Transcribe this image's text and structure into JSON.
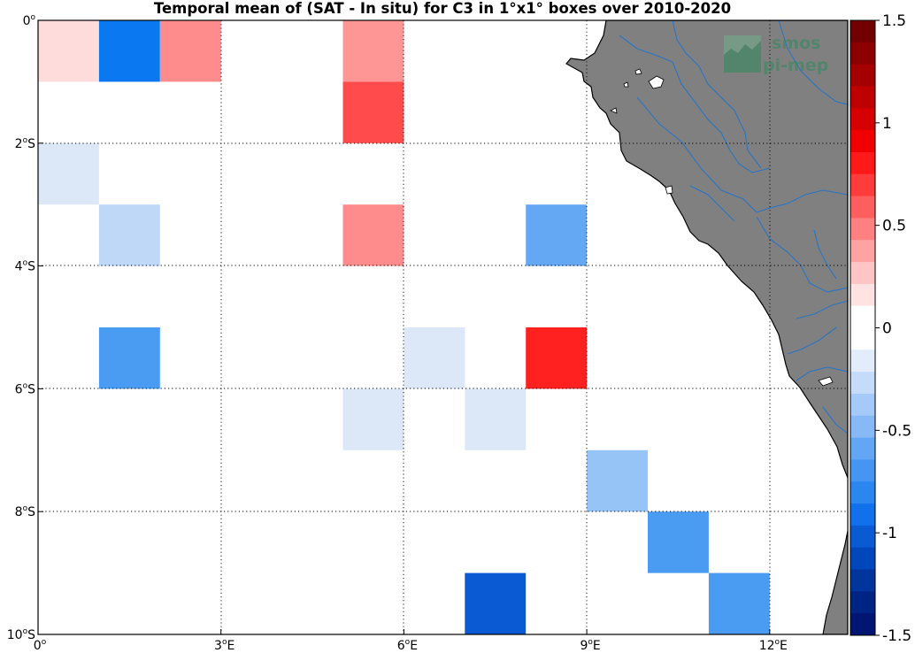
{
  "title": "Temporal mean of (SAT - In situ) for C3 in 1°x1° boxes over 2010-2020",
  "logo": {
    "line1": "smos",
    "line2": "pi-mep"
  },
  "x_ticks": [
    {
      "value": 0,
      "deg": "0",
      "sup": "o",
      "suffix": ""
    },
    {
      "value": 3,
      "deg": "3",
      "sup": "o",
      "suffix": "E"
    },
    {
      "value": 6,
      "deg": "6",
      "sup": "o",
      "suffix": "E"
    },
    {
      "value": 9,
      "deg": "9",
      "sup": "o",
      "suffix": "E"
    },
    {
      "value": 12,
      "deg": "12",
      "sup": "o",
      "suffix": "E"
    }
  ],
  "y_ticks": [
    {
      "value": 0,
      "deg": "0",
      "sup": "o",
      "suffix": ""
    },
    {
      "value": -2,
      "deg": "2",
      "sup": "o",
      "suffix": "S"
    },
    {
      "value": -4,
      "deg": "4",
      "sup": "o",
      "suffix": "S"
    },
    {
      "value": -6,
      "deg": "6",
      "sup": "o",
      "suffix": "S"
    },
    {
      "value": -8,
      "deg": "8",
      "sup": "o",
      "suffix": "S"
    },
    {
      "value": -10,
      "deg": "10",
      "sup": "o",
      "suffix": "S"
    }
  ],
  "colorbar": {
    "min": -1.5,
    "max": 1.5,
    "tick_labels": [
      "1.5",
      "1",
      "0.5",
      "0",
      "-0.5",
      "-1",
      "-1.5"
    ],
    "colors_top_to_bottom": [
      "#730000",
      "#8c0000",
      "#a50000",
      "#be0000",
      "#d70000",
      "#f00000",
      "#ff1a1a",
      "#ff3c3c",
      "#ff5e5e",
      "#ff8080",
      "#ffa2a2",
      "#ffc4c4",
      "#ffe2e2",
      "#ffffff",
      "#ffffff",
      "#e2ecfa",
      "#c4dcfa",
      "#a5c9f8",
      "#87b9f6",
      "#62a6f4",
      "#4596f2",
      "#2b86f0",
      "#1170ec",
      "#0a5ad4",
      "#0047bc",
      "#00359e",
      "#002483",
      "#001671"
    ]
  },
  "chart_data": {
    "type": "heatmap",
    "title": "Temporal mean of (SAT - In situ) for C3 in 1°x1° boxes over 2010-2020",
    "x_range": [
      0,
      13.3
    ],
    "y_range": [
      -10,
      0
    ],
    "grid": true,
    "colorbar_range": [
      -1.5,
      1.5
    ],
    "boxes": [
      {
        "lon": 0,
        "lat": 0,
        "value": 0.1,
        "color": "#ffdcdc"
      },
      {
        "lon": 1,
        "lat": 0,
        "value": -0.95,
        "color": "#0a78f0"
      },
      {
        "lon": 2,
        "lat": 0,
        "value": 0.45,
        "color": "#ff8c8c"
      },
      {
        "lon": 5,
        "lat": 0,
        "value": 0.4,
        "color": "#ff9696"
      },
      {
        "lon": 5,
        "lat": -1,
        "value": 0.8,
        "color": "#ff4b4b"
      },
      {
        "lon": 0,
        "lat": -2,
        "value": -0.15,
        "color": "#dce8f8"
      },
      {
        "lon": 1,
        "lat": -3,
        "value": -0.25,
        "color": "#c0d8f8"
      },
      {
        "lon": 5,
        "lat": -3,
        "value": 0.45,
        "color": "#ff8c8c"
      },
      {
        "lon": 8,
        "lat": -3,
        "value": -0.55,
        "color": "#64a8f4"
      },
      {
        "lon": 1,
        "lat": -5,
        "value": -0.65,
        "color": "#4a9cf2"
      },
      {
        "lon": 6,
        "lat": -5,
        "value": -0.15,
        "color": "#dce8f8"
      },
      {
        "lon": 8,
        "lat": -5,
        "value": 1.0,
        "color": "#ff2020"
      },
      {
        "lon": 5,
        "lat": -6,
        "value": -0.15,
        "color": "#dce8f8"
      },
      {
        "lon": 7,
        "lat": -6,
        "value": -0.15,
        "color": "#dce8f8"
      },
      {
        "lon": 9,
        "lat": -7,
        "value": -0.4,
        "color": "#96c4f6"
      },
      {
        "lon": 10,
        "lat": -8,
        "value": -0.65,
        "color": "#4a9cf2"
      },
      {
        "lon": 7,
        "lat": -9,
        "value": -1.1,
        "color": "#0a5ad4"
      },
      {
        "lon": 11,
        "lat": -9,
        "value": -0.65,
        "color": "#4a9cf2"
      }
    ]
  }
}
